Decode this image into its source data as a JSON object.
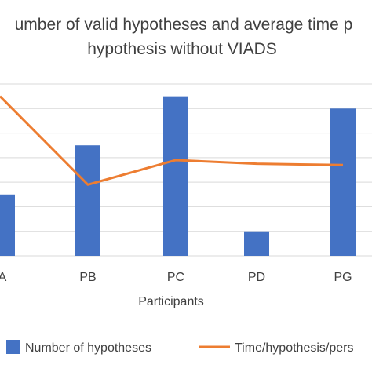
{
  "chart_data": {
    "type": "bar",
    "title_lines": [
      "umber of valid hypotheses and average time p",
      "hypothesis without VIADS"
    ],
    "xlabel": "Participants",
    "categories": [
      "A",
      "PB",
      "PC",
      "PD",
      "PG"
    ],
    "grid": true,
    "legend_position": "bottom",
    "series": [
      {
        "name": "Number of hypotheses",
        "kind": "bar",
        "color": "#4472C4",
        "values": [
          2.5,
          4.5,
          6.5,
          1.0,
          6.0
        ]
      },
      {
        "name": "Time/hypothesis/pers",
        "kind": "line",
        "color": "#ED7D31",
        "values": [
          6.5,
          2.9,
          3.9,
          3.75,
          3.7
        ]
      }
    ],
    "ylim": [
      0,
      7
    ]
  }
}
